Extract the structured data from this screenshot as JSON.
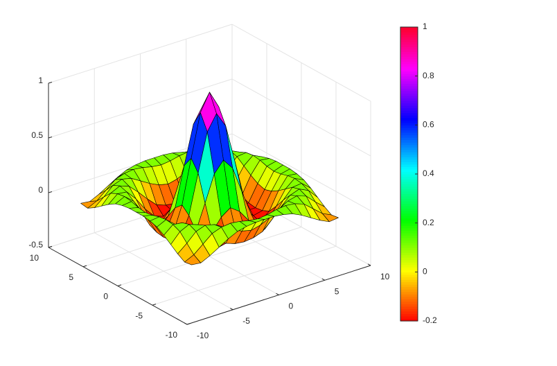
{
  "chart_data": {
    "type": "surface",
    "x": [
      -8,
      -7,
      -6,
      -5,
      -4,
      -3,
      -2,
      -1,
      0,
      1,
      2,
      3,
      4,
      5,
      6,
      7,
      8
    ],
    "y": [
      -8,
      -7,
      -6,
      -5,
      -4,
      -3,
      -2,
      -1,
      0,
      1,
      2,
      3,
      4,
      5,
      6,
      7,
      8
    ],
    "z": [
      [
        -0.08,
        -0.09,
        -0.05,
        0,
        0.05,
        0.09,
        0.11,
        0.12,
        0.12,
        0.12,
        0.11,
        0.09,
        0.05,
        0,
        -0.05,
        -0.09,
        -0.08
      ],
      [
        -0.09,
        -0.05,
        0.02,
        0.09,
        0.12,
        0.13,
        0.12,
        0.1,
        0.09,
        0.1,
        0.12,
        0.13,
        0.12,
        0.09,
        0.02,
        -0.05,
        -0.09
      ],
      [
        -0.05,
        0.02,
        0.1,
        0.13,
        0.11,
        0.06,
        0.01,
        -0.03,
        -0.05,
        -0.03,
        0.01,
        0.06,
        0.11,
        0.13,
        0.1,
        0.02,
        -0.05
      ],
      [
        0,
        0.09,
        0.13,
        0.1,
        0.02,
        -0.07,
        -0.15,
        -0.18,
        -0.19,
        -0.18,
        -0.15,
        -0.07,
        0.02,
        0.1,
        0.13,
        0.09,
        0
      ],
      [
        0.05,
        0.12,
        0.11,
        0.02,
        -0.1,
        -0.19,
        -0.22,
        -0.2,
        -0.19,
        -0.2,
        -0.22,
        -0.19,
        -0.1,
        0.02,
        0.11,
        0.12,
        0.05
      ],
      [
        0.09,
        0.13,
        0.06,
        -0.07,
        -0.19,
        -0.21,
        -0.12,
        -0.01,
        0.05,
        -0.01,
        -0.12,
        -0.21,
        -0.19,
        -0.07,
        0.06,
        0.13,
        0.09
      ],
      [
        0.11,
        0.12,
        0.01,
        -0.15,
        -0.22,
        -0.12,
        0.11,
        0.35,
        0.45,
        0.35,
        0.11,
        -0.12,
        -0.22,
        -0.15,
        0.01,
        0.12,
        0.11
      ],
      [
        0.12,
        0.1,
        -0.03,
        -0.18,
        -0.2,
        -0.01,
        0.35,
        0.7,
        0.84,
        0.7,
        0.35,
        -0.01,
        -0.2,
        -0.18,
        -0.03,
        0.1,
        0.12
      ],
      [
        0.12,
        0.09,
        -0.05,
        -0.19,
        -0.19,
        0.05,
        0.45,
        0.84,
        1,
        0.84,
        0.45,
        0.05,
        -0.19,
        -0.19,
        -0.05,
        0.09,
        0.12
      ],
      [
        0.12,
        0.1,
        -0.03,
        -0.18,
        -0.2,
        -0.01,
        0.35,
        0.7,
        0.84,
        0.7,
        0.35,
        -0.01,
        -0.2,
        -0.18,
        -0.03,
        0.1,
        0.12
      ],
      [
        0.11,
        0.12,
        0.01,
        -0.15,
        -0.22,
        -0.12,
        0.11,
        0.35,
        0.45,
        0.35,
        0.11,
        -0.12,
        -0.22,
        -0.15,
        0.01,
        0.12,
        0.11
      ],
      [
        0.09,
        0.13,
        0.06,
        -0.07,
        -0.19,
        -0.21,
        -0.12,
        -0.01,
        0.05,
        -0.01,
        -0.12,
        -0.21,
        -0.19,
        -0.07,
        0.06,
        0.13,
        0.09
      ],
      [
        0.05,
        0.12,
        0.11,
        0.02,
        -0.1,
        -0.19,
        -0.22,
        -0.2,
        -0.19,
        -0.2,
        -0.22,
        -0.19,
        -0.1,
        0.02,
        0.11,
        0.12,
        0.05
      ],
      [
        0,
        0.09,
        0.13,
        0.1,
        0.02,
        -0.07,
        -0.15,
        -0.18,
        -0.19,
        -0.18,
        -0.15,
        -0.07,
        0.02,
        0.1,
        0.13,
        0.09,
        0
      ],
      [
        -0.05,
        0.02,
        0.1,
        0.13,
        0.11,
        0.06,
        0.01,
        -0.03,
        -0.05,
        -0.03,
        0.01,
        0.06,
        0.11,
        0.13,
        0.1,
        0.02,
        -0.05
      ],
      [
        -0.09,
        -0.05,
        0.02,
        0.09,
        0.12,
        0.13,
        0.12,
        0.1,
        0.09,
        0.1,
        0.12,
        0.13,
        0.12,
        0.09,
        0.02,
        -0.05,
        -0.09
      ],
      [
        -0.08,
        -0.09,
        -0.05,
        0,
        0.05,
        0.09,
        0.11,
        0.12,
        0.12,
        0.12,
        0.11,
        0.09,
        0.05,
        0,
        -0.05,
        -0.09,
        -0.08
      ]
    ],
    "xlim": [
      -10,
      10
    ],
    "ylim": [
      -10,
      10
    ],
    "zlim": [
      -0.5,
      1
    ],
    "xticks": [
      -10,
      -5,
      0,
      5,
      10
    ],
    "yticks": [
      -10,
      -5,
      0,
      5,
      10
    ],
    "zticks": [
      -0.5,
      0,
      0.5,
      1
    ],
    "grid": true,
    "colormap": "hsv",
    "edge_color": "#000000",
    "clim": [
      -0.2,
      1
    ],
    "colorbar_ticks": [
      -0.2,
      0,
      0.2,
      0.4,
      0.6,
      0.8,
      1
    ]
  }
}
